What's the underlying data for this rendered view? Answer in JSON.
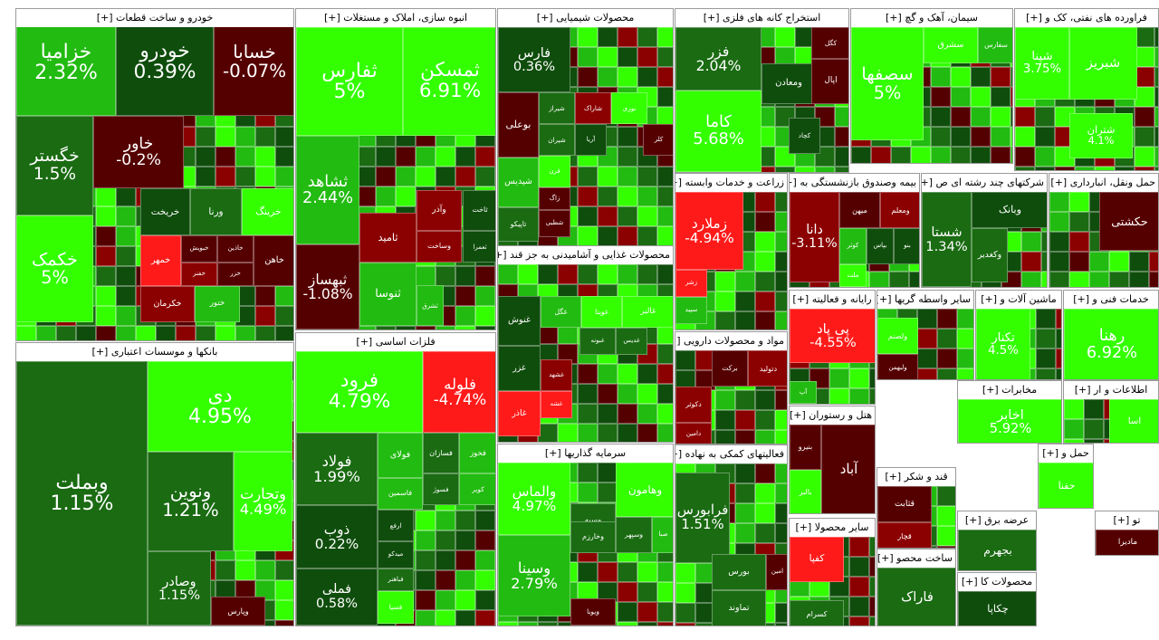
{
  "colors": {
    "up_bright": "#33ff00",
    "up_mid": "#22bb11",
    "up_dark": "#1a6b12",
    "up_deep": "#0f4d0c",
    "down_dark": "#550000",
    "down_mid": "#8b0000",
    "down_bright": "#ff1a1a"
  },
  "chart_data": {
    "type": "treemap",
    "sections": [
      {
        "title": "خودرو و ساخت قطعات [+]",
        "cells": [
          {
            "s": "خزامیا",
            "c": "2.32%",
            "col": "up_mid"
          },
          {
            "s": "خودرو",
            "c": "0.39%",
            "col": "up_deep"
          },
          {
            "s": "خسابا",
            "c": "-0.07%",
            "col": "down_dark"
          },
          {
            "s": "خگستر",
            "c": "1.5%",
            "col": "up_dark"
          },
          {
            "s": "خاور",
            "c": "-0.2%",
            "col": "down_dark"
          },
          {
            "s": "خکمک",
            "c": "5%",
            "col": "up_bright"
          },
          {
            "s": "خریخت",
            "c": "",
            "col": "up_deep"
          },
          {
            "s": "ورنا",
            "c": "",
            "col": "up_dark"
          },
          {
            "s": "خرینگ",
            "c": "",
            "col": "up_bright"
          },
          {
            "s": "خمهر",
            "c": "",
            "col": "down_bright"
          },
          {
            "s": "خبویش",
            "c": "",
            "col": "down_dark"
          },
          {
            "s": "خکرمان",
            "c": "",
            "col": "down_mid"
          },
          {
            "s": "خفنر",
            "c": "",
            "col": "down_mid"
          },
          {
            "s": "ختور",
            "c": "",
            "col": "up_mid"
          },
          {
            "s": "خاذین",
            "c": "",
            "col": "down_dark"
          },
          {
            "s": "خزر",
            "c": "",
            "col": "down_dark"
          },
          {
            "s": "خاهن",
            "c": "",
            "col": "down_dark"
          }
        ]
      },
      {
        "title": "انبوه سازی، املاک و مستغلات [+]",
        "cells": [
          {
            "s": "ثفارس",
            "c": "5%",
            "col": "up_bright"
          },
          {
            "s": "ثمسکن",
            "c": "6.91%",
            "col": "up_bright"
          },
          {
            "s": "ثشاهد",
            "c": "2.44%",
            "col": "up_mid"
          },
          {
            "s": "ثبهساز",
            "c": "-1.08%",
            "col": "down_dark"
          },
          {
            "s": "ثامید",
            "c": "",
            "col": "down_mid"
          },
          {
            "s": "ثنوسا",
            "c": "",
            "col": "up_mid"
          },
          {
            "s": "ثاخت",
            "c": "",
            "col": "up_deep"
          },
          {
            "s": "ثعمرا",
            "c": "",
            "col": "up_deep"
          },
          {
            "s": "وآذر",
            "c": "",
            "col": "down_mid"
          },
          {
            "s": "وساخت",
            "c": "",
            "col": "down_mid"
          },
          {
            "s": "ثشرق",
            "c": "",
            "col": "up_mid"
          }
        ]
      },
      {
        "title": "فلزات اساسی [+]",
        "cells": [
          {
            "s": "فرود",
            "c": "4.79%",
            "col": "up_bright"
          },
          {
            "s": "فلوله",
            "c": "-4.74%",
            "col": "down_bright"
          },
          {
            "s": "فولاد",
            "c": "1.99%",
            "col": "up_dark"
          },
          {
            "s": "ذوب",
            "c": "0.22%",
            "col": "up_deep"
          },
          {
            "s": "فملی",
            "c": "0.58%",
            "col": "up_deep"
          },
          {
            "s": "فولای",
            "c": "",
            "col": "up_mid"
          },
          {
            "s": "فسازان",
            "c": "",
            "col": "up_dark"
          },
          {
            "s": "فخوز",
            "c": "",
            "col": "up_mid"
          },
          {
            "s": "فاسمین",
            "c": "",
            "col": "up_mid"
          },
          {
            "s": "فسوژ",
            "c": "",
            "col": "up_dark"
          },
          {
            "s": "کویر",
            "c": "",
            "col": "up_mid"
          },
          {
            "s": "ارفع",
            "c": "",
            "col": "up_deep"
          },
          {
            "s": "میدکو",
            "c": "",
            "col": "up_deep"
          },
          {
            "s": "فباهنر",
            "c": "",
            "col": "up_dark"
          },
          {
            "s": "فسپا",
            "c": "",
            "col": "up_bright"
          }
        ]
      },
      {
        "title": "بانکها و موسسات اعتباری [+]",
        "cells": [
          {
            "s": "وبملت",
            "c": "1.15%",
            "col": "up_dark"
          },
          {
            "s": "دی",
            "c": "4.95%",
            "col": "up_bright"
          },
          {
            "s": "ونوین",
            "c": "1.21%",
            "col": "up_dark"
          },
          {
            "s": "وتجارت",
            "c": "4.49%",
            "col": "up_bright"
          },
          {
            "s": "وصادر",
            "c": "1.15%",
            "col": "up_dark"
          },
          {
            "s": "وپارس",
            "c": "",
            "col": "down_dark"
          }
        ]
      },
      {
        "title": "محصولات شیمیایی [+]",
        "cells": [
          {
            "s": "فارس",
            "c": "0.36%",
            "col": "up_deep"
          },
          {
            "s": "بوعلی",
            "c": "",
            "col": "down_dark"
          },
          {
            "s": "شیراز",
            "c": "",
            "col": "up_dark"
          },
          {
            "s": "شاراک",
            "c": "",
            "col": "down_mid"
          },
          {
            "s": "نوری",
            "c": "",
            "col": "up_bright"
          },
          {
            "s": "شیران",
            "c": "",
            "col": "up_dark"
          },
          {
            "s": "آریا",
            "c": "",
            "col": "up_deep"
          },
          {
            "s": "کلر",
            "c": "",
            "col": "down_dark"
          },
          {
            "s": "شپدیس",
            "c": "",
            "col": "up_mid"
          },
          {
            "s": "قرن",
            "c": "",
            "col": "up_bright"
          },
          {
            "s": "زاگ",
            "c": "",
            "col": "down_dark"
          },
          {
            "s": "تاپیکو",
            "c": "",
            "col": "up_dark"
          },
          {
            "s": "شطبی",
            "c": "",
            "col": "down_dark"
          }
        ]
      },
      {
        "title": "محصولات غذایی و آشامیدنی به جز قند [+]",
        "cells": [
          {
            "s": "غگل",
            "c": "",
            "col": "up_mid"
          },
          {
            "s": "غویتا",
            "c": "",
            "col": "up_bright"
          },
          {
            "s": "غالبر",
            "c": "",
            "col": "up_bright"
          },
          {
            "s": "غنوش",
            "c": "",
            "col": "up_deep"
          },
          {
            "s": "غبونه",
            "c": "",
            "col": "up_dark"
          },
          {
            "s": "غدیس",
            "c": "",
            "col": "up_dark"
          },
          {
            "s": "غزر",
            "c": "",
            "col": "up_deep"
          },
          {
            "s": "غشهد",
            "c": "",
            "col": "down_mid"
          },
          {
            "s": "غاذر",
            "c": "",
            "col": "down_bright"
          },
          {
            "s": "غشه",
            "c": "",
            "col": "down_bright"
          }
        ]
      },
      {
        "title": "سرمایه گذاریها [+]",
        "cells": [
          {
            "s": "والماس",
            "c": "4.97%",
            "col": "up_bright"
          },
          {
            "s": "وسینا",
            "c": "2.79%",
            "col": "up_mid"
          },
          {
            "s": "وسپه",
            "c": "",
            "col": "up_dark"
          },
          {
            "s": "وهامون",
            "c": "",
            "col": "up_bright"
          },
          {
            "s": "وسپهر",
            "c": "",
            "col": "up_dark"
          },
          {
            "s": "صبا",
            "c": "",
            "col": "up_mid"
          },
          {
            "s": "وخارزم",
            "c": "",
            "col": "up_dark"
          },
          {
            "s": "ویوبا",
            "c": "",
            "col": "down_dark"
          }
        ]
      },
      {
        "title": "استخراج کانه های فلزی [+]",
        "cells": [
          {
            "s": "فزر",
            "c": "2.04%",
            "col": "up_dark"
          },
          {
            "s": "کگل",
            "c": "",
            "col": "down_dark"
          },
          {
            "s": "کاما",
            "c": "5.68%",
            "col": "up_bright"
          },
          {
            "s": "ومعادن",
            "c": "",
            "col": "up_deep"
          },
          {
            "s": "اپال",
            "c": "",
            "col": "down_dark"
          },
          {
            "s": "کچاد",
            "c": "",
            "col": "up_deep"
          }
        ]
      },
      {
        "title": "زراعت و خدمات وابسته [+]",
        "cells": [
          {
            "s": "زملارد",
            "c": "-4.94%",
            "col": "down_bright"
          },
          {
            "s": "زشر",
            "c": "",
            "col": "down_bright"
          },
          {
            "s": "سپید",
            "c": "",
            "col": "up_mid"
          }
        ]
      },
      {
        "title": "مواد و محصولات دارویی [+]",
        "cells": [
          {
            "s": "برکت",
            "c": "",
            "col": "down_dark"
          },
          {
            "s": "دتولید",
            "c": "",
            "col": "down_mid"
          },
          {
            "s": "دکوثر",
            "c": "",
            "col": "down_mid"
          },
          {
            "s": "دامین",
            "c": "",
            "col": "down_mid"
          }
        ]
      },
      {
        "title": "فعالیتهای کمکی به نهاده [+]",
        "cells": [
          {
            "s": "فرابورس",
            "c": "1.51%",
            "col": "up_dark"
          },
          {
            "s": "بورس",
            "c": "",
            "col": "up_dark"
          },
          {
            "s": "امین",
            "c": "",
            "col": "down_dark"
          },
          {
            "s": "تماوند",
            "c": "",
            "col": "up_dark"
          }
        ]
      },
      {
        "title": "سیمان، آهک و گچ [+]",
        "cells": [
          {
            "s": "سصفها",
            "c": "5%",
            "col": "up_bright"
          },
          {
            "s": "سشرق",
            "c": "",
            "col": "up_bright"
          },
          {
            "s": "سفارس",
            "c": "",
            "col": "up_mid"
          }
        ]
      },
      {
        "title": "فراورده های نفتی، کک و [+]",
        "cells": [
          {
            "s": "شپنا",
            "c": "3.75%",
            "col": "up_bright"
          },
          {
            "s": "شبریز",
            "c": "",
            "col": "up_bright"
          },
          {
            "s": "شتران",
            "c": "4.1%",
            "col": "up_bright"
          }
        ]
      },
      {
        "title": "بیمه وصندوق بازنشستگی به [+]",
        "cells": [
          {
            "s": "میهن",
            "c": "",
            "col": "down_dark"
          },
          {
            "s": "ومعلم",
            "c": "",
            "col": "down_mid"
          },
          {
            "s": "دانا",
            "c": "-3.11%",
            "col": "down_mid"
          },
          {
            "s": "کوثر",
            "c": "",
            "col": "up_mid"
          },
          {
            "s": "بپاس",
            "c": "",
            "col": "up_deep"
          },
          {
            "s": "بنو",
            "c": "",
            "col": "up_deep"
          },
          {
            "s": "ملت",
            "c": "",
            "col": "up_bright"
          }
        ]
      },
      {
        "title": "شرکتهای چند رشته ای ص [+]",
        "cells": [
          {
            "s": "شستا",
            "c": "1.34%",
            "col": "up_dark"
          },
          {
            "s": "وبانک",
            "c": "",
            "col": "up_deep"
          },
          {
            "s": "وکغدیر",
            "c": "",
            "col": "up_dark"
          }
        ]
      },
      {
        "title": "حمل ونقل، انبارداری [+]",
        "cells": [
          {
            "s": "حکشتی",
            "c": "",
            "col": "down_dark"
          }
        ]
      },
      {
        "title": "رایانه و فعالیته [+]",
        "cells": [
          {
            "s": "پی پاد",
            "c": "-4.55%",
            "col": "down_bright"
          },
          {
            "s": "آپ",
            "c": "",
            "col": "up_mid"
          }
        ]
      },
      {
        "title": "سایر واسطه گریها [+]",
        "cells": [
          {
            "s": "ولصنم",
            "c": "",
            "col": "up_bright"
          },
          {
            "s": "ولبهمن",
            "c": "",
            "col": "down_dark"
          }
        ]
      },
      {
        "title": "ماشین آلات و [+]",
        "cells": [
          {
            "s": "تکنار",
            "c": "4.5%",
            "col": "up_bright"
          }
        ]
      },
      {
        "title": "خدمات فنی و [+]",
        "cells": [
          {
            "s": "رهنا",
            "c": "6.92%",
            "col": "up_bright"
          }
        ]
      },
      {
        "title": "هتل و رستوران [+]",
        "cells": [
          {
            "s": "آباد",
            "c": "",
            "col": "down_dark"
          },
          {
            "s": "بنیرو",
            "c": "",
            "col": "down_dark"
          },
          {
            "s": "بالبر",
            "c": "",
            "col": "up_bright"
          }
        ]
      },
      {
        "title": "مخابرات [+]",
        "cells": [
          {
            "s": "اخابر",
            "c": "5.92%",
            "col": "up_bright"
          }
        ]
      },
      {
        "title": "اطلاعات و ار [+]",
        "cells": [
          {
            "s": "اسا",
            "c": "",
            "col": "up_bright"
          }
        ]
      },
      {
        "title": "قند و شکر [+]",
        "cells": [
          {
            "s": "قثابت",
            "c": "",
            "col": "down_dark"
          },
          {
            "s": "قچار",
            "c": "",
            "col": "down_mid"
          }
        ]
      },
      {
        "title": "ساخت محصو [+]",
        "cells": [
          {
            "s": "فاراک",
            "c": "",
            "col": "up_dark"
          }
        ]
      },
      {
        "title": "سایر محصولا [+]",
        "cells": [
          {
            "s": "کفپا",
            "c": "",
            "col": "down_bright"
          },
          {
            "s": "کسرام",
            "c": "",
            "col": "up_dark"
          }
        ]
      },
      {
        "title": "محصولات کا [+]",
        "cells": [
          {
            "s": "چکاپا",
            "c": "",
            "col": "up_deep"
          }
        ]
      },
      {
        "title": "عرضه برق [+]",
        "cells": [
          {
            "s": "بجهرم",
            "c": "",
            "col": "up_dark"
          }
        ]
      },
      {
        "title": "حمل و [+]",
        "cells": [
          {
            "s": "حفنا",
            "c": "",
            "col": "up_bright"
          }
        ]
      },
      {
        "title": "تو [+]",
        "cells": [
          {
            "s": "مادیرا",
            "c": "",
            "col": "down_dark"
          }
        ]
      }
    ]
  }
}
